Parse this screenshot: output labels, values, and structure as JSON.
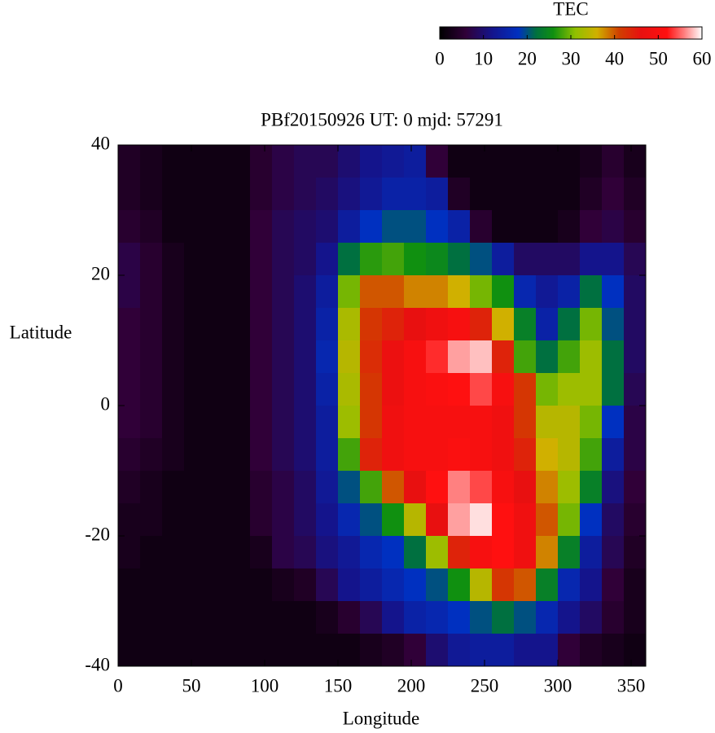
{
  "chart_data": {
    "type": "heatmap",
    "title": "PBf20150926  UT: 0  mjd: 57291",
    "x_label": "Longitude",
    "y_label": "Latitude",
    "xlim": [
      0,
      360
    ],
    "ylim": [
      -40,
      40
    ],
    "xticks": [
      0,
      50,
      100,
      150,
      200,
      250,
      300,
      350
    ],
    "yticks": [
      -40,
      -20,
      0,
      20,
      40
    ],
    "x": [
      7.5,
      22.5,
      37.5,
      52.5,
      67.5,
      82.5,
      97.5,
      112.5,
      127.5,
      142.5,
      157.5,
      172.5,
      187.5,
      202.5,
      217.5,
      232.5,
      247.5,
      262.5,
      277.5,
      292.5,
      307.5,
      322.5,
      337.5,
      352.5
    ],
    "y": [
      37.5,
      32.5,
      27.5,
      22.5,
      17.5,
      12.5,
      7.5,
      2.5,
      -2.5,
      -7.5,
      -12.5,
      -17.5,
      -22.5,
      -27.5,
      -32.5,
      -37.5
    ],
    "z": [
      [
        4,
        3,
        2,
        2,
        2,
        2,
        5,
        7,
        8,
        8,
        10,
        12,
        13,
        14,
        6,
        2,
        2,
        2,
        2,
        2,
        2,
        3,
        5,
        3
      ],
      [
        4,
        3,
        2,
        2,
        2,
        2,
        5,
        7,
        8,
        9,
        11,
        13,
        15,
        15,
        14,
        4,
        2,
        2,
        2,
        2,
        2,
        4,
        6,
        4
      ],
      [
        5,
        4,
        2,
        2,
        2,
        2,
        6,
        8,
        9,
        10,
        14,
        18,
        20,
        20,
        18,
        15,
        5,
        2,
        2,
        2,
        3,
        6,
        7,
        5
      ],
      [
        7,
        5,
        3,
        2,
        2,
        2,
        6,
        8,
        9,
        12,
        22,
        27,
        28,
        26,
        25,
        22,
        20,
        14,
        9,
        9,
        9,
        12,
        12,
        8
      ],
      [
        7,
        5,
        3,
        2,
        2,
        2,
        6,
        8,
        10,
        14,
        30,
        40,
        40,
        38,
        38,
        36,
        30,
        26,
        16,
        13,
        15,
        22,
        18,
        9
      ],
      [
        6,
        5,
        3,
        2,
        2,
        2,
        6,
        8,
        10,
        15,
        33,
        42,
        44,
        46,
        48,
        50,
        44,
        36,
        24,
        15,
        22,
        30,
        20,
        9
      ],
      [
        6,
        5,
        3,
        2,
        2,
        2,
        6,
        8,
        10,
        16,
        34,
        43,
        47,
        50,
        53,
        57,
        58,
        44,
        28,
        22,
        28,
        32,
        22,
        9
      ],
      [
        6,
        5,
        3,
        2,
        2,
        2,
        6,
        8,
        10,
        15,
        33,
        42,
        47,
        50,
        51,
        52,
        54,
        50,
        42,
        30,
        32,
        32,
        22,
        8
      ],
      [
        6,
        5,
        3,
        2,
        2,
        2,
        6,
        8,
        10,
        14,
        32,
        42,
        48,
        50,
        50,
        50,
        50,
        48,
        42,
        34,
        34,
        30,
        18,
        7
      ],
      [
        5,
        4,
        3,
        2,
        2,
        2,
        6,
        8,
        10,
        14,
        28,
        44,
        48,
        50,
        50,
        51,
        50,
        48,
        44,
        36,
        34,
        28,
        14,
        7
      ],
      [
        4,
        3,
        2,
        2,
        2,
        2,
        5,
        7,
        9,
        13,
        20,
        28,
        40,
        46,
        52,
        56,
        54,
        50,
        46,
        38,
        32,
        24,
        11,
        6
      ],
      [
        3,
        3,
        2,
        2,
        2,
        2,
        5,
        7,
        9,
        12,
        16,
        20,
        26,
        34,
        46,
        57,
        59,
        52,
        48,
        40,
        30,
        18,
        9,
        5
      ],
      [
        3,
        2,
        2,
        2,
        2,
        2,
        3,
        7,
        8,
        11,
        13,
        16,
        18,
        22,
        32,
        44,
        50,
        52,
        48,
        38,
        24,
        14,
        8,
        4
      ],
      [
        2,
        2,
        2,
        2,
        2,
        2,
        2,
        3,
        4,
        8,
        12,
        14,
        16,
        18,
        20,
        26,
        34,
        42,
        40,
        24,
        16,
        12,
        6,
        3
      ],
      [
        2,
        2,
        2,
        2,
        2,
        2,
        2,
        2,
        2,
        3,
        5,
        8,
        12,
        15,
        16,
        18,
        20,
        22,
        20,
        16,
        12,
        9,
        5,
        3
      ],
      [
        2,
        2,
        2,
        2,
        2,
        2,
        2,
        2,
        2,
        2,
        2,
        3,
        4,
        6,
        10,
        13,
        14,
        14,
        12,
        12,
        6,
        4,
        3,
        2
      ]
    ],
    "colorbar": {
      "title": "TEC",
      "lim": [
        0,
        60
      ],
      "ticks": [
        0,
        10,
        20,
        30,
        40,
        50,
        60
      ]
    },
    "colorscale": [
      [
        0,
        "#000000"
      ],
      [
        6,
        "#300038"
      ],
      [
        12,
        "#14148c"
      ],
      [
        18,
        "#0030c0"
      ],
      [
        22,
        "#007040"
      ],
      [
        26,
        "#109010"
      ],
      [
        31,
        "#90c000"
      ],
      [
        36,
        "#d0b000"
      ],
      [
        41,
        "#d04000"
      ],
      [
        46,
        "#e81010"
      ],
      [
        52,
        "#ff1010"
      ],
      [
        56,
        "#ff8080"
      ],
      [
        60,
        "#ffffff"
      ]
    ]
  }
}
